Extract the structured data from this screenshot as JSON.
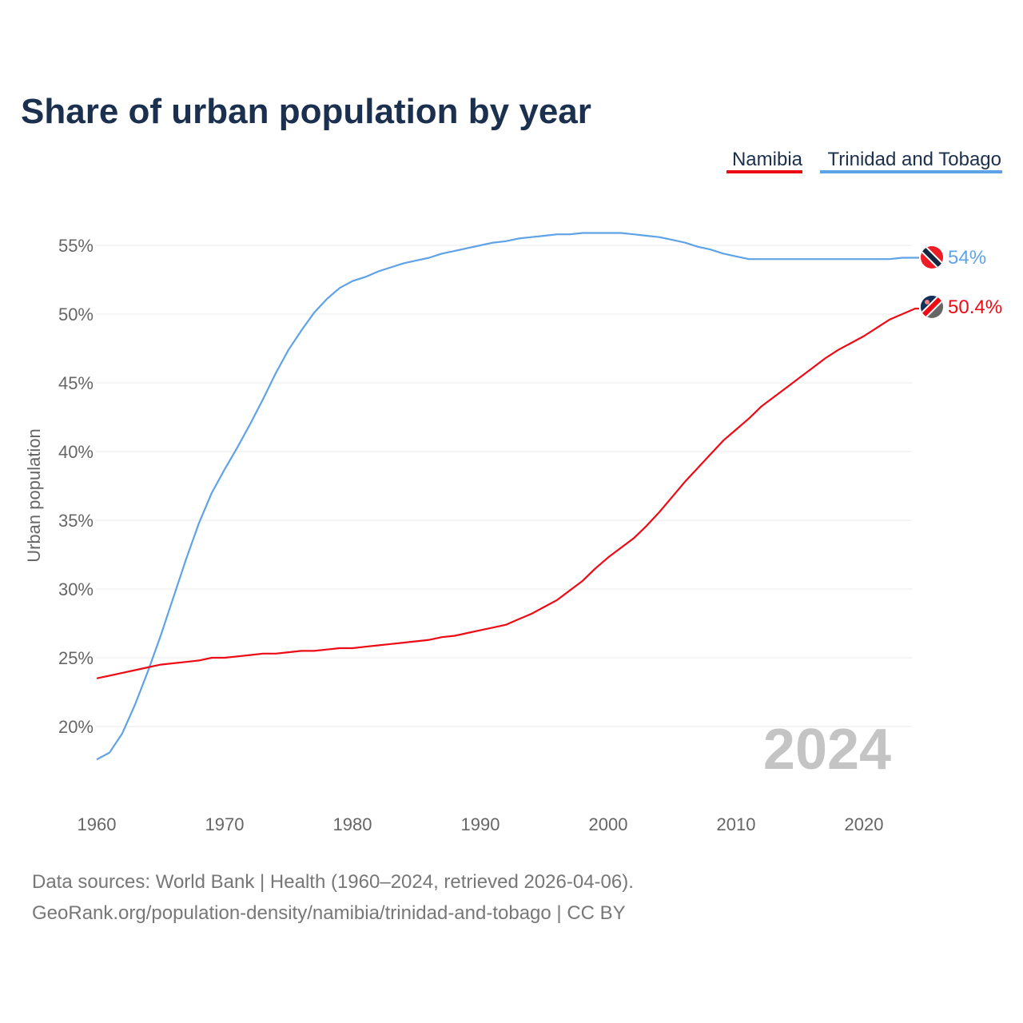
{
  "chart_data": {
    "type": "line",
    "title": "Share of urban population by year",
    "ylabel": "Urban population",
    "xlabel": "",
    "ylim": [
      15,
      57
    ],
    "xlim": [
      1960,
      2024
    ],
    "grid": true,
    "legend_placement": "top-right",
    "y_ticks": [
      20,
      25,
      30,
      35,
      40,
      45,
      50,
      55
    ],
    "y_tick_labels": [
      "20%",
      "25%",
      "30%",
      "35%",
      "40%",
      "45%",
      "50%",
      "55%"
    ],
    "x_ticks": [
      1960,
      1970,
      1980,
      1990,
      2000,
      2010,
      2020
    ],
    "x_tick_labels": [
      "1960",
      "1970",
      "1980",
      "1990",
      "2000",
      "2010",
      "2020"
    ],
    "year_label": "2024",
    "x": [
      1960,
      1961,
      1962,
      1963,
      1964,
      1965,
      1966,
      1967,
      1968,
      1969,
      1970,
      1971,
      1972,
      1973,
      1974,
      1975,
      1976,
      1977,
      1978,
      1979,
      1980,
      1981,
      1982,
      1983,
      1984,
      1985,
      1986,
      1987,
      1988,
      1989,
      1990,
      1991,
      1992,
      1993,
      1994,
      1995,
      1996,
      1997,
      1998,
      1999,
      2000,
      2001,
      2002,
      2003,
      2004,
      2005,
      2006,
      2007,
      2008,
      2009,
      2010,
      2011,
      2012,
      2013,
      2014,
      2015,
      2016,
      2017,
      2018,
      2019,
      2020,
      2021,
      2022,
      2023,
      2024
    ],
    "series": [
      {
        "name": "Namibia",
        "color": "#ee0a14",
        "end_label": "50.4%",
        "values": [
          23.5,
          23.7,
          23.9,
          24.1,
          24.3,
          24.5,
          24.6,
          24.7,
          24.8,
          25.0,
          25.0,
          25.1,
          25.2,
          25.3,
          25.3,
          25.4,
          25.5,
          25.5,
          25.6,
          25.7,
          25.7,
          25.8,
          25.9,
          26.0,
          26.1,
          26.2,
          26.3,
          26.5,
          26.6,
          26.8,
          27.0,
          27.2,
          27.4,
          27.8,
          28.2,
          28.7,
          29.2,
          29.9,
          30.6,
          31.5,
          32.3,
          33.0,
          33.7,
          34.6,
          35.6,
          36.7,
          37.8,
          38.8,
          39.8,
          40.8,
          41.6,
          42.4,
          43.3,
          44.0,
          44.7,
          45.4,
          46.1,
          46.8,
          47.4,
          47.9,
          48.4,
          49.0,
          49.6,
          50.0,
          50.4
        ]
      },
      {
        "name": "Trinidad and Tobago",
        "color": "#5ea3e8",
        "end_label": "54%",
        "values": [
          17.6,
          18.1,
          19.5,
          21.6,
          24.0,
          26.6,
          29.4,
          32.2,
          34.8,
          37.0,
          38.7,
          40.3,
          42.0,
          43.8,
          45.7,
          47.4,
          48.8,
          50.1,
          51.1,
          51.9,
          52.4,
          52.7,
          53.1,
          53.4,
          53.7,
          53.9,
          54.1,
          54.4,
          54.6,
          54.8,
          55.0,
          55.2,
          55.3,
          55.5,
          55.6,
          55.7,
          55.8,
          55.8,
          55.9,
          55.9,
          55.9,
          55.9,
          55.8,
          55.7,
          55.6,
          55.4,
          55.2,
          54.9,
          54.7,
          54.4,
          54.2,
          54.0,
          54.0,
          54.0,
          54.0,
          54.0,
          54.0,
          54.0,
          54.0,
          54.0,
          54.0,
          54.0,
          54.0,
          54.1,
          54.1
        ]
      }
    ]
  },
  "footer": {
    "line1": "Data sources: World Bank | Health (1960–2024, retrieved 2026-04-06).",
    "line2": "GeoRank.org/population-density/namibia/trinidad-and-tobago | CC BY"
  }
}
